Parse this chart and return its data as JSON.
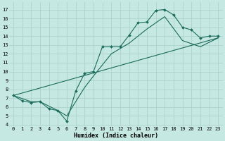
{
  "xlabel": "Humidex (Indice chaleur)",
  "xlim": [
    -0.5,
    23.5
  ],
  "ylim": [
    3.8,
    17.8
  ],
  "xticks": [
    0,
    1,
    2,
    3,
    4,
    5,
    6,
    7,
    8,
    9,
    10,
    11,
    12,
    13,
    14,
    15,
    16,
    17,
    18,
    19,
    20,
    21,
    22,
    23
  ],
  "yticks": [
    4,
    5,
    6,
    7,
    8,
    9,
    10,
    11,
    12,
    13,
    14,
    15,
    16,
    17
  ],
  "bg_color": "#c6e8e2",
  "grid_major_color": "#a8cfc8",
  "grid_minor_color": "#b8dcd6",
  "line_color": "#1a6b5a",
  "line1_x": [
    0,
    1,
    2,
    3,
    4,
    5,
    6,
    7,
    8,
    9,
    10,
    11,
    12,
    13,
    14,
    15,
    16,
    17,
    18,
    19,
    20,
    21,
    22,
    23
  ],
  "line1_y": [
    7.3,
    6.7,
    6.5,
    6.6,
    5.8,
    5.6,
    4.4,
    7.8,
    9.8,
    10.0,
    12.8,
    12.8,
    12.8,
    14.1,
    15.5,
    15.6,
    16.9,
    17.0,
    16.4,
    15.0,
    14.7,
    13.8,
    14.0,
    14.0
  ],
  "line2_x": [
    0,
    2,
    3,
    5,
    6,
    8,
    9,
    11,
    13,
    15,
    17,
    19,
    21,
    23
  ],
  "line2_y": [
    7.3,
    6.6,
    6.6,
    5.6,
    5.0,
    8.2,
    9.5,
    12.0,
    13.2,
    14.8,
    16.2,
    13.5,
    12.8,
    13.8
  ],
  "line3_x": [
    0,
    23
  ],
  "line3_y": [
    7.3,
    13.8
  ],
  "xlabel_fontsize": 6.0,
  "tick_fontsize": 5.0,
  "lw": 0.8,
  "ms": 2.0
}
